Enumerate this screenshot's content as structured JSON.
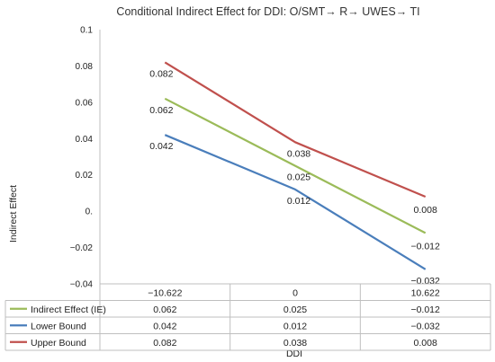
{
  "chart_data": {
    "type": "line",
    "title": "Conditional Indirect Effect for DDI: O/SMT→ R→ UWES→ TI",
    "ylabel": "Indirect Effect",
    "xlabel": "DDI",
    "categories": [
      "−10.622",
      "0",
      "10.622"
    ],
    "ylim": [
      -0.04,
      0.1
    ],
    "yticks": [
      {
        "value": 0.1,
        "label": "0.1"
      },
      {
        "value": 0.08,
        "label": "0.08"
      },
      {
        "value": 0.06,
        "label": "0.06"
      },
      {
        "value": 0.04,
        "label": "0.04"
      },
      {
        "value": 0.02,
        "label": "0.02"
      },
      {
        "value": 0,
        "label": "0."
      },
      {
        "value": -0.02,
        "label": "−0.02"
      },
      {
        "value": -0.04,
        "label": "−0.04"
      }
    ],
    "grid": false,
    "legend": "data table below plot",
    "series": [
      {
        "name": "Indirect Effect (IE)",
        "color": "#9bbb59",
        "values": [
          0.062,
          0.025,
          -0.012
        ],
        "labels": [
          "0.062",
          "0.025",
          "−0.012"
        ]
      },
      {
        "name": "Lower Bound",
        "color": "#4a7ebb",
        "values": [
          0.042,
          0.012,
          -0.032
        ],
        "labels": [
          "0.042",
          "0.012",
          "−0.032"
        ]
      },
      {
        "name": "Upper Bound",
        "color": "#c0504d",
        "values": [
          0.082,
          0.038,
          0.008
        ],
        "labels": [
          "0.082",
          "0.038",
          "0.008"
        ]
      }
    ]
  }
}
